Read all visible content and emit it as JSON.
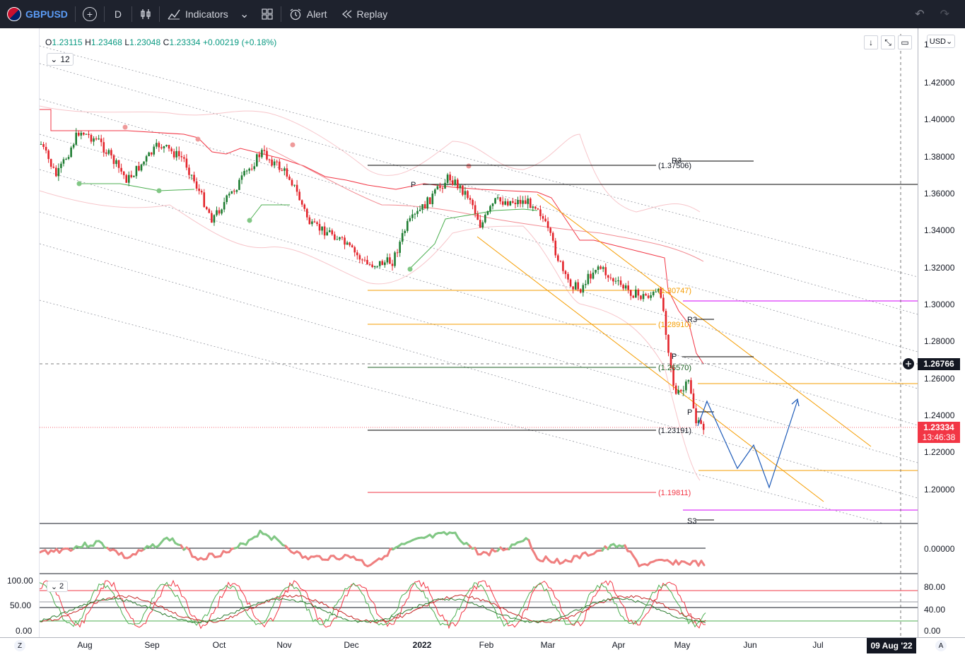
{
  "toolbar": {
    "symbol": "GBPUSD",
    "interval": "D",
    "indicators_label": "Indicators",
    "alert_label": "Alert",
    "replay_label": "Replay",
    "icons": [
      "flag-icon",
      "add-symbol-icon",
      "candles-icon",
      "indicators-icon",
      "chevron-down-icon",
      "layout-icon",
      "alert-icon",
      "replay-icon",
      "undo-icon",
      "redo-icon"
    ]
  },
  "legend": {
    "o_key": "O",
    "o": "1.23115",
    "h_key": "H",
    "h": "1.23468",
    "l_key": "L",
    "l": "1.23048",
    "c_key": "C",
    "c": "1.23334",
    "change": "+0.00219 (+0.18%)",
    "toggle_count": "12",
    "pane2_count": "2"
  },
  "currency": "USD",
  "price_axis": {
    "ticks": [
      "1.42000",
      "1.40000",
      "1.38000",
      "1.36000",
      "1.34000",
      "1.32000",
      "1.30000",
      "1.28000",
      "1.26000",
      "1.24000",
      "1.22000",
      "1.20000"
    ],
    "top_partial": "1"
  },
  "crosshair_price": "1.26766",
  "last_price": "1.23334",
  "countdown": "13:46:38",
  "osc_axis": [
    "0.00000"
  ],
  "stoch_axis_right": [
    "80.00",
    "40.00",
    "0.00"
  ],
  "stoch_axis_left": [
    "100.00",
    "50.00",
    "0.00"
  ],
  "time_axis": [
    "Aug",
    "Sep",
    "Oct",
    "Nov",
    "Dec",
    "2022",
    "Feb",
    "Mar",
    "Apr",
    "May",
    "Jun",
    "Jul"
  ],
  "date_tag": "09 Aug '22",
  "corner_left": "Z",
  "corner_right": "A",
  "levels": {
    "r3_top": "R3",
    "r3_top_val": "(1.37506)",
    "p_top": "P",
    "fib_1": "(1.30747)",
    "r3_mid": "R3",
    "fib_2": "(1.28910)",
    "p_mid": "P",
    "fib_3": "(1.26570)",
    "p_low": "P",
    "fib_4": "(1.23191)",
    "fib_5": "(1.19811)",
    "s3": "S3"
  },
  "colors": {
    "up": "#089981",
    "down": "#f23645",
    "candle_up": "#1e7d32",
    "candle_down": "#e3242b",
    "fib_orange": "#f59d00",
    "pivot_black": "#000000",
    "magenta": "#d500f9",
    "projection": "#1e5bb8",
    "toolbar_bg": "#1e222d"
  }
}
